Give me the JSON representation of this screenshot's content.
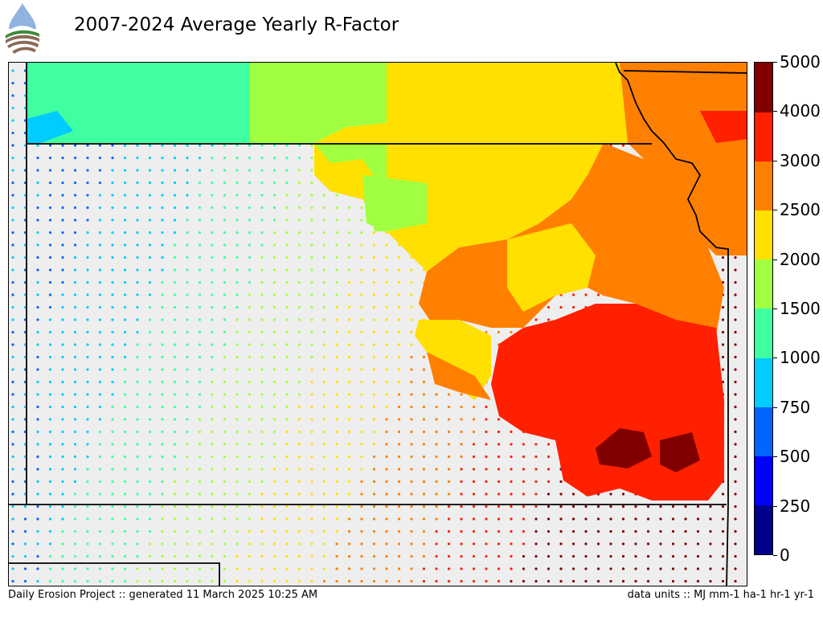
{
  "header": {
    "title": "2007-2024 Average Yearly R-Factor"
  },
  "logo": {
    "icon": "daily-erosion-project-logo-icon"
  },
  "map": {
    "background_color": "#eeeeee",
    "border_color": "#000000",
    "palette": [
      "#00008b",
      "#0000ff",
      "#0066ff",
      "#00ccff",
      "#40ffa0",
      "#a0ff40",
      "#ffe000",
      "#ff8000",
      "#ff2000",
      "#800000"
    ]
  },
  "colorbar": {
    "labels": [
      "5000",
      "4000",
      "3000",
      "2500",
      "2000",
      "1500",
      "1000",
      "750",
      "500",
      "250",
      "0"
    ],
    "bins": [
      {
        "from": 0,
        "to": 250,
        "color": "#00008b"
      },
      {
        "from": 250,
        "to": 500,
        "color": "#0000ff"
      },
      {
        "from": 500,
        "to": 750,
        "color": "#0066ff"
      },
      {
        "from": 750,
        "to": 1000,
        "color": "#00ccff"
      },
      {
        "from": 1000,
        "to": 1500,
        "color": "#40ffa0"
      },
      {
        "from": 1500,
        "to": 2000,
        "color": "#a0ff40"
      },
      {
        "from": 2000,
        "to": 2500,
        "color": "#ffe000"
      },
      {
        "from": 2500,
        "to": 3000,
        "color": "#ff8000"
      },
      {
        "from": 3000,
        "to": 4000,
        "color": "#ff2000"
      },
      {
        "from": 4000,
        "to": 5000,
        "color": "#800000"
      }
    ]
  },
  "footer": {
    "left": "Daily Erosion Project :: generated 11 March 2025 10:25 AM",
    "right": "data units :: MJ mm-1 ha-1 hr-1 yr-1"
  }
}
